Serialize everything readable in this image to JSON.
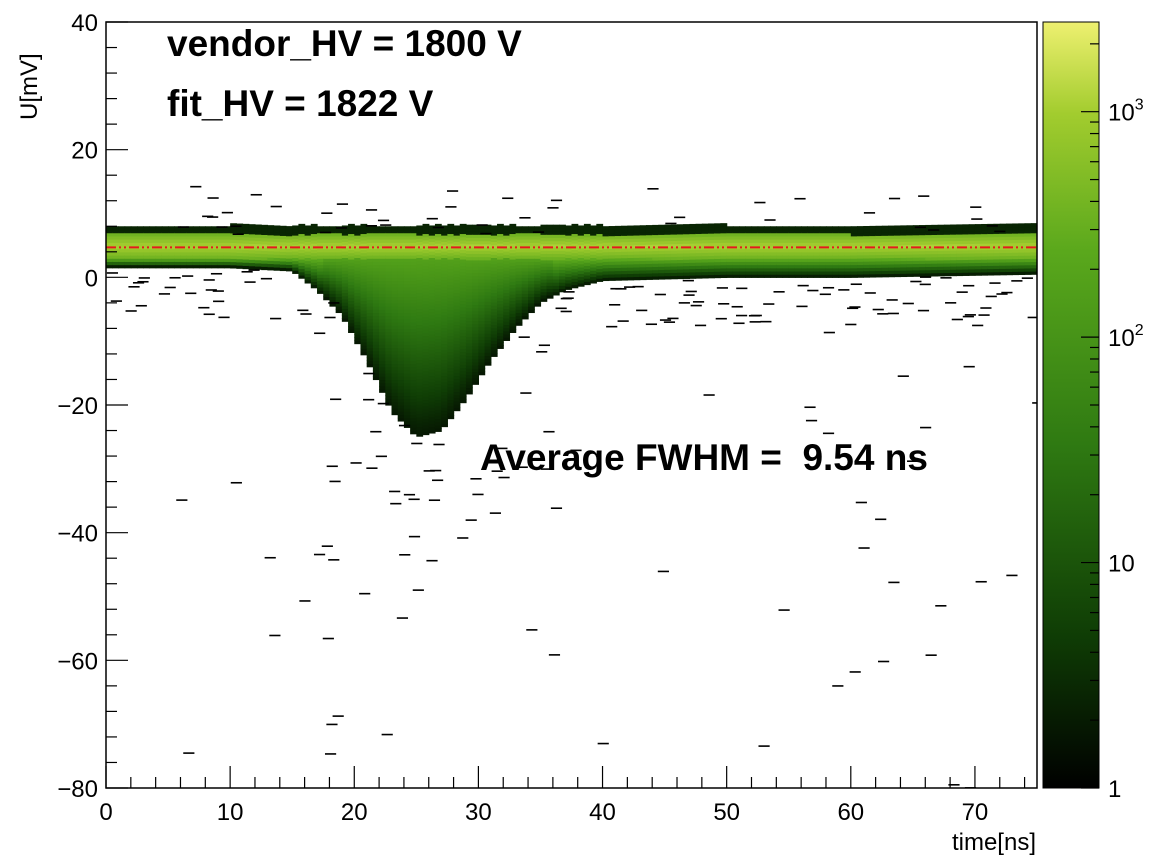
{
  "chart_data": {
    "type": "heatmap",
    "title": "",
    "xlabel": "time[ns]",
    "ylabel": "U[mV]",
    "xlim": [
      0,
      75
    ],
    "ylim": [
      -80,
      40
    ],
    "x_ticks": [
      0,
      10,
      20,
      30,
      40,
      50,
      60,
      70
    ],
    "y_ticks": [
      -80,
      -60,
      -40,
      -20,
      0,
      20,
      40
    ],
    "log_z": true,
    "z_range": [
      1,
      2500
    ],
    "colorbar_ticks": [
      {
        "value": 1,
        "label": "1"
      },
      {
        "value": 10,
        "label": "10"
      },
      {
        "value": 100,
        "label": "10",
        "exp": "2"
      },
      {
        "value": 1000,
        "label": "10",
        "exp": "3"
      }
    ],
    "colormap": [
      "#000000",
      "#0f3d05",
      "#2f7a12",
      "#5aa81c",
      "#a2cc2e",
      "#eef070"
    ],
    "annotations": [
      "vendor_HV = 1800 V",
      "fit_HV = 1822 V",
      "Average FWHM =  9.54 ns"
    ],
    "baseline_mV": 4.7,
    "baseline_color": "#e41a1c",
    "pulse_profile": [
      {
        "t": 0,
        "low": 1.5
      },
      {
        "t": 10,
        "low": 1.5
      },
      {
        "t": 15,
        "low": 1.0
      },
      {
        "t": 17,
        "low": -2
      },
      {
        "t": 19,
        "low": -6
      },
      {
        "t": 21,
        "low": -13
      },
      {
        "t": 23,
        "low": -21
      },
      {
        "t": 25,
        "low": -25
      },
      {
        "t": 27,
        "low": -24
      },
      {
        "t": 29,
        "low": -19
      },
      {
        "t": 31,
        "low": -13
      },
      {
        "t": 33,
        "low": -8
      },
      {
        "t": 35,
        "low": -4
      },
      {
        "t": 37,
        "low": -2
      },
      {
        "t": 40,
        "low": -0.5
      },
      {
        "t": 50,
        "low": 0
      },
      {
        "t": 60,
        "low": 0
      },
      {
        "t": 75,
        "low": 0.5
      }
    ],
    "band_top_mV": 6.5
  }
}
